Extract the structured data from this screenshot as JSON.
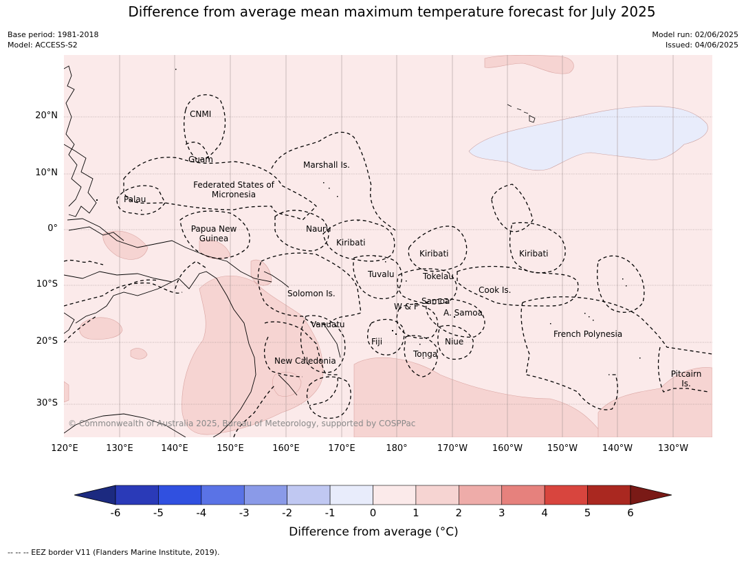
{
  "title": "Difference from average mean maximum temperature forecast for July 2025",
  "meta_left": [
    "Base period: 1981-2018",
    "Model: ACCESS-S2"
  ],
  "meta_right": [
    "Model run: 02/06/2025",
    "Issued: 04/06/2025"
  ],
  "lat_labels": [
    "20°N",
    "10°N",
    "0°",
    "10°S",
    "20°S",
    "30°S"
  ],
  "lon_labels": [
    "120°E",
    "130°E",
    "140°E",
    "150°E",
    "160°E",
    "170°E",
    "180°",
    "170°W",
    "160°W",
    "150°W",
    "140°W",
    "130°W"
  ],
  "places": {
    "cnmi": "CNMI",
    "guam": "Guam",
    "marshall": "Marshall Is.",
    "fsm": "Federated States of Micronesia",
    "palau": "Palau",
    "png": "Papua New Guinea",
    "nauru": "Nauru",
    "kiribati_w": "Kiribati",
    "kiribati_c": "Kiribati",
    "kiribati_e": "Kiribati",
    "tuvalu": "Tuvalu",
    "tokelau": "Tokelau",
    "solomon": "Solomon Is.",
    "cook": "Cook Is.",
    "wf": "W & F",
    "samoa": "Samoa",
    "asamoa": "A. Samoa",
    "vanuatu": "Vanuatu",
    "fiji": "Fiji",
    "niue": "Niue",
    "tonga": "Tonga",
    "polynesia": "French Polynesia",
    "newcal": "New Caledonia",
    "pitcairn": "Pitcairn Is."
  },
  "copyright": "© Commonwealth of Australia 2025, Bureau of Meteorology, supported by COSPPac",
  "colorbar": {
    "ticks": [
      "-6",
      "-5",
      "-4",
      "-3",
      "-2",
      "-1",
      "0",
      "1",
      "2",
      "3",
      "4",
      "5",
      "6"
    ],
    "colors": [
      "#1c2a80",
      "#2a3ab8",
      "#3050e0",
      "#5a73e6",
      "#8a9ae8",
      "#c0c8f2",
      "#e8ecfb",
      "#fbeaea",
      "#f6d4d2",
      "#eeaca9",
      "#e6817d",
      "#d8453e",
      "#aa2820",
      "#7a1a16"
    ],
    "label": "Difference from average (°C)"
  },
  "footnote": "--  --  -- EEZ border V11 (Flanders Marine Institute, 2019)."
}
